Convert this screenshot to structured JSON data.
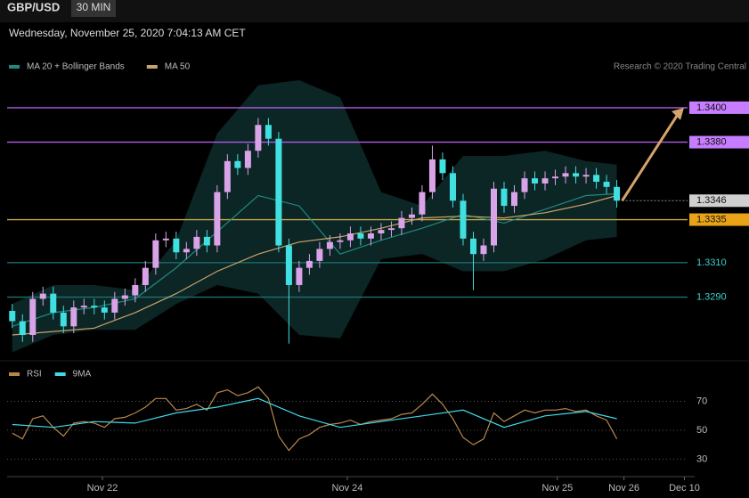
{
  "header": {
    "symbol": "GBP/USD",
    "interval": "30 MIN"
  },
  "chart_data": [
    {
      "type": "candlestick",
      "subtitle": "Wednesday, November 25, 2020 7:04:13 AM CET",
      "credit": "Research © 2020 Trading Central",
      "up_color": "#d9a3e8",
      "down_color": "#40e0e0",
      "open": [
        1.3282,
        1.3276,
        1.3268,
        1.3289,
        1.3292,
        1.3281,
        1.3273,
        1.3284,
        1.3285,
        1.3284,
        1.3281,
        1.3289,
        1.3291,
        1.3297,
        1.3307,
        1.3323,
        1.3324,
        1.3316,
        1.3318,
        1.3325,
        1.332,
        1.3351,
        1.3369,
        1.3365,
        1.3375,
        1.339,
        1.3382,
        1.332,
        1.3297,
        1.3307,
        1.3311,
        1.3318,
        1.3322,
        1.3323,
        1.3327,
        1.3324,
        1.3327,
        1.3329,
        1.333,
        1.3336,
        1.3338,
        1.3351,
        1.337,
        1.3362,
        1.3346,
        1.3324,
        1.3315,
        1.332,
        1.3353,
        1.3343,
        1.3351,
        1.3359,
        1.3356,
        1.3359,
        1.336,
        1.3362,
        1.336,
        1.3361,
        1.3357,
        1.3354
      ],
      "high": [
        1.3286,
        1.328,
        1.3293,
        1.3296,
        1.3296,
        1.3285,
        1.3288,
        1.3289,
        1.3289,
        1.3288,
        1.3293,
        1.3295,
        1.3301,
        1.3311,
        1.3327,
        1.3328,
        1.3328,
        1.3322,
        1.3329,
        1.3329,
        1.3355,
        1.3373,
        1.3373,
        1.3379,
        1.3394,
        1.3394,
        1.3386,
        1.3324,
        1.3311,
        1.3315,
        1.3322,
        1.3326,
        1.3327,
        1.3331,
        1.3331,
        1.3331,
        1.3333,
        1.3334,
        1.334,
        1.3342,
        1.3355,
        1.3378,
        1.3374,
        1.3366,
        1.335,
        1.3328,
        1.3324,
        1.3357,
        1.3357,
        1.3355,
        1.3363,
        1.3363,
        1.3363,
        1.3364,
        1.3366,
        1.3366,
        1.3365,
        1.3365,
        1.3361,
        1.3358
      ],
      "low": [
        1.3272,
        1.3264,
        1.3264,
        1.3285,
        1.3277,
        1.3269,
        1.3269,
        1.328,
        1.328,
        1.3277,
        1.3277,
        1.3285,
        1.3287,
        1.3293,
        1.3303,
        1.3319,
        1.3312,
        1.3312,
        1.3314,
        1.3316,
        1.3316,
        1.3347,
        1.3361,
        1.3361,
        1.3371,
        1.3378,
        1.3316,
        1.3263,
        1.3293,
        1.3303,
        1.3307,
        1.3314,
        1.3318,
        1.3319,
        1.332,
        1.332,
        1.3323,
        1.3325,
        1.3326,
        1.3332,
        1.3334,
        1.3347,
        1.3358,
        1.3342,
        1.332,
        1.3294,
        1.3311,
        1.3316,
        1.3339,
        1.3339,
        1.3347,
        1.3352,
        1.3352,
        1.3355,
        1.3356,
        1.3356,
        1.3356,
        1.3353,
        1.335,
        1.3342
      ],
      "close": [
        1.3276,
        1.3268,
        1.3289,
        1.3292,
        1.3281,
        1.3273,
        1.3284,
        1.3285,
        1.3284,
        1.3281,
        1.3289,
        1.3291,
        1.3297,
        1.3307,
        1.3323,
        1.3324,
        1.3316,
        1.3318,
        1.3325,
        1.332,
        1.3351,
        1.3369,
        1.3365,
        1.3375,
        1.339,
        1.3382,
        1.332,
        1.3297,
        1.3307,
        1.3311,
        1.3318,
        1.3322,
        1.3323,
        1.3327,
        1.3324,
        1.3327,
        1.3329,
        1.333,
        1.3336,
        1.3338,
        1.3351,
        1.337,
        1.3362,
        1.3346,
        1.3324,
        1.3315,
        1.332,
        1.3353,
        1.3343,
        1.3351,
        1.3359,
        1.3356,
        1.3359,
        1.336,
        1.3362,
        1.336,
        1.3361,
        1.3357,
        1.3354,
        1.3346
      ],
      "series": [
        {
          "name": "MA 20 + Bollinger Bands",
          "color": "#1f8a80",
          "band_color": "#0f2e2e",
          "x": [
            0,
            4,
            8,
            12,
            16,
            20,
            24,
            28,
            32,
            36,
            40,
            44,
            48,
            52,
            56,
            59
          ],
          "values": [
            1.3273,
            1.3281,
            1.3284,
            1.3289,
            1.3307,
            1.3328,
            1.3349,
            1.3343,
            1.3315,
            1.3323,
            1.333,
            1.3338,
            1.3333,
            1.3341,
            1.3349,
            1.335
          ],
          "upper": [
            1.3286,
            1.3297,
            1.3297,
            1.3294,
            1.3323,
            1.3385,
            1.3413,
            1.3416,
            1.3406,
            1.3351,
            1.3343,
            1.3372,
            1.3372,
            1.3375,
            1.3369,
            1.3367
          ],
          "lower": [
            1.3258,
            1.3268,
            1.3271,
            1.3271,
            1.3286,
            1.3297,
            1.3292,
            1.3268,
            1.3266,
            1.3312,
            1.3315,
            1.3305,
            1.3305,
            1.3312,
            1.3323,
            1.3325
          ]
        },
        {
          "name": "MA 50",
          "color": "#c9a46a",
          "x": [
            0,
            4,
            8,
            12,
            16,
            20,
            24,
            28,
            32,
            36,
            40,
            44,
            48,
            52,
            56,
            59
          ],
          "values": [
            1.3268,
            1.327,
            1.3272,
            1.3281,
            1.3292,
            1.3305,
            1.3315,
            1.3322,
            1.3325,
            1.333,
            1.3336,
            1.3337,
            1.3336,
            1.3339,
            1.3344,
            1.3349
          ]
        }
      ],
      "levels": [
        {
          "value": 1.34,
          "label": "1.3400",
          "color": "#b05ce8",
          "label_bg": "#c77dff"
        },
        {
          "value": 1.338,
          "label": "1.3380",
          "color": "#b05ce8",
          "label_bg": "#c77dff"
        },
        {
          "value": 1.3346,
          "label": "1.3346",
          "color": "#888888",
          "label_bg": "#d0d0d0",
          "dash": true
        },
        {
          "value": 1.3335,
          "label": "1.3335",
          "color": "#c8a84a",
          "label_bg": "#e8a317"
        },
        {
          "value": 1.331,
          "label": "1.3310",
          "color": "#1d6b6b",
          "label_color": "#3fd0d0"
        },
        {
          "value": 1.329,
          "label": "1.3290",
          "color": "#1d6b6b",
          "label_color": "#3fd0d0"
        }
      ],
      "ylim": [
        1.3253,
        1.3416
      ],
      "xlim": [
        -0.5,
        66.6
      ]
    },
    {
      "type": "line",
      "series": [
        {
          "name": "RSI",
          "color": "#b8864b",
          "values": [
            48,
            44,
            58,
            60,
            52,
            46,
            55,
            56,
            55,
            52,
            58,
            59,
            62,
            66,
            72,
            72,
            64,
            65,
            68,
            64,
            76,
            78,
            74,
            76,
            80,
            72,
            46,
            36,
            44,
            47,
            52,
            54,
            55,
            57,
            54,
            56,
            57,
            58,
            61,
            62,
            68,
            75,
            68,
            58,
            45,
            40,
            44,
            62,
            56,
            60,
            64,
            62,
            64,
            64,
            65,
            63,
            64,
            60,
            57,
            44
          ]
        },
        {
          "name": "9MA",
          "color": "#40d8e8",
          "x": [
            0,
            4,
            8,
            12,
            16,
            20,
            24,
            28,
            32,
            36,
            40,
            44,
            48,
            52,
            56,
            59
          ],
          "values": [
            54,
            52,
            56,
            55,
            62,
            66,
            72,
            60,
            52,
            56,
            60,
            64,
            52,
            60,
            63,
            58
          ]
        }
      ],
      "ylim": [
        21,
        95
      ],
      "yticks": [
        30,
        50,
        70
      ],
      "xlim": [
        -0.5,
        66.6
      ],
      "xticks": [
        {
          "value": 8.8,
          "label": "Nov 22"
        },
        {
          "value": 32.7,
          "label": "Nov 24"
        },
        {
          "value": 53.2,
          "label": "Nov 25"
        },
        {
          "value": 59.7,
          "label": "Nov 26"
        },
        {
          "value": 65.6,
          "label": "Dec 10"
        }
      ]
    }
  ]
}
